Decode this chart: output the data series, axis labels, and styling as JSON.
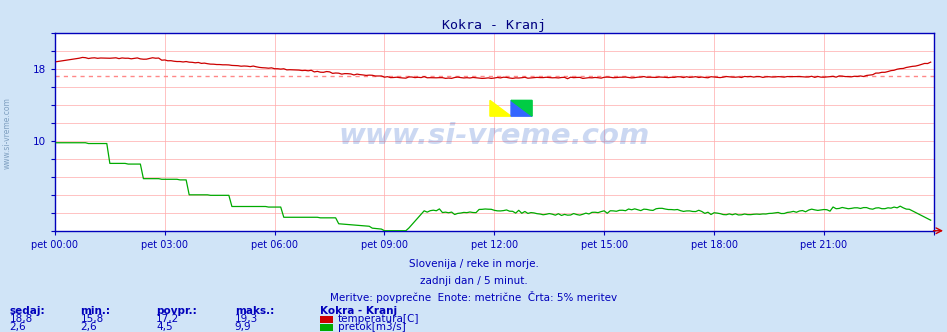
{
  "title": "Kokra - Kranj",
  "title_color": "#000080",
  "bg_color": "#d0e4f7",
  "plot_bg_color": "#ffffff",
  "grid_color": "#ffaaaa",
  "axis_color": "#0000bb",
  "tick_color": "#0000bb",
  "text_color": "#0000bb",
  "watermark": "www.si-vreme.com",
  "xlabel_times": [
    "pet 00:00",
    "pet 03:00",
    "pet 06:00",
    "pet 09:00",
    "pet 12:00",
    "pet 15:00",
    "pet 18:00",
    "pet 21:00",
    ""
  ],
  "ytick_labels": [
    "",
    "",
    "",
    "",
    "",
    "10",
    "",
    "",
    "",
    "18",
    "",
    ""
  ],
  "ytick_vals": [
    0,
    2,
    4,
    6,
    8,
    10,
    12,
    14,
    16,
    18,
    20,
    22
  ],
  "ylim": [
    0,
    22
  ],
  "temp_color": "#cc0000",
  "flow_color": "#00aa00",
  "avg_line_color": "#ff8888",
  "footer_line1": "Slovenija / reke in morje.",
  "footer_line2": "zadnji dan / 5 minut.",
  "footer_line3": "Meritve: povprečne  Enote: metrične  Črta: 5% meritev",
  "stats_headers": [
    "sedaj:",
    "min.:",
    "povpr.:",
    "maks.:"
  ],
  "stats_temp": [
    "18,8",
    "15,8",
    "17,2",
    "19,3"
  ],
  "stats_flow": [
    "2,6",
    "2,6",
    "4,5",
    "9,9"
  ],
  "legend_title": "Kokra - Kranj",
  "legend_temp": "temperatura[C]",
  "legend_flow": "pretok[m3/s]",
  "temp_avg": 17.2,
  "flow_avg": 4.5,
  "n_points": 288
}
